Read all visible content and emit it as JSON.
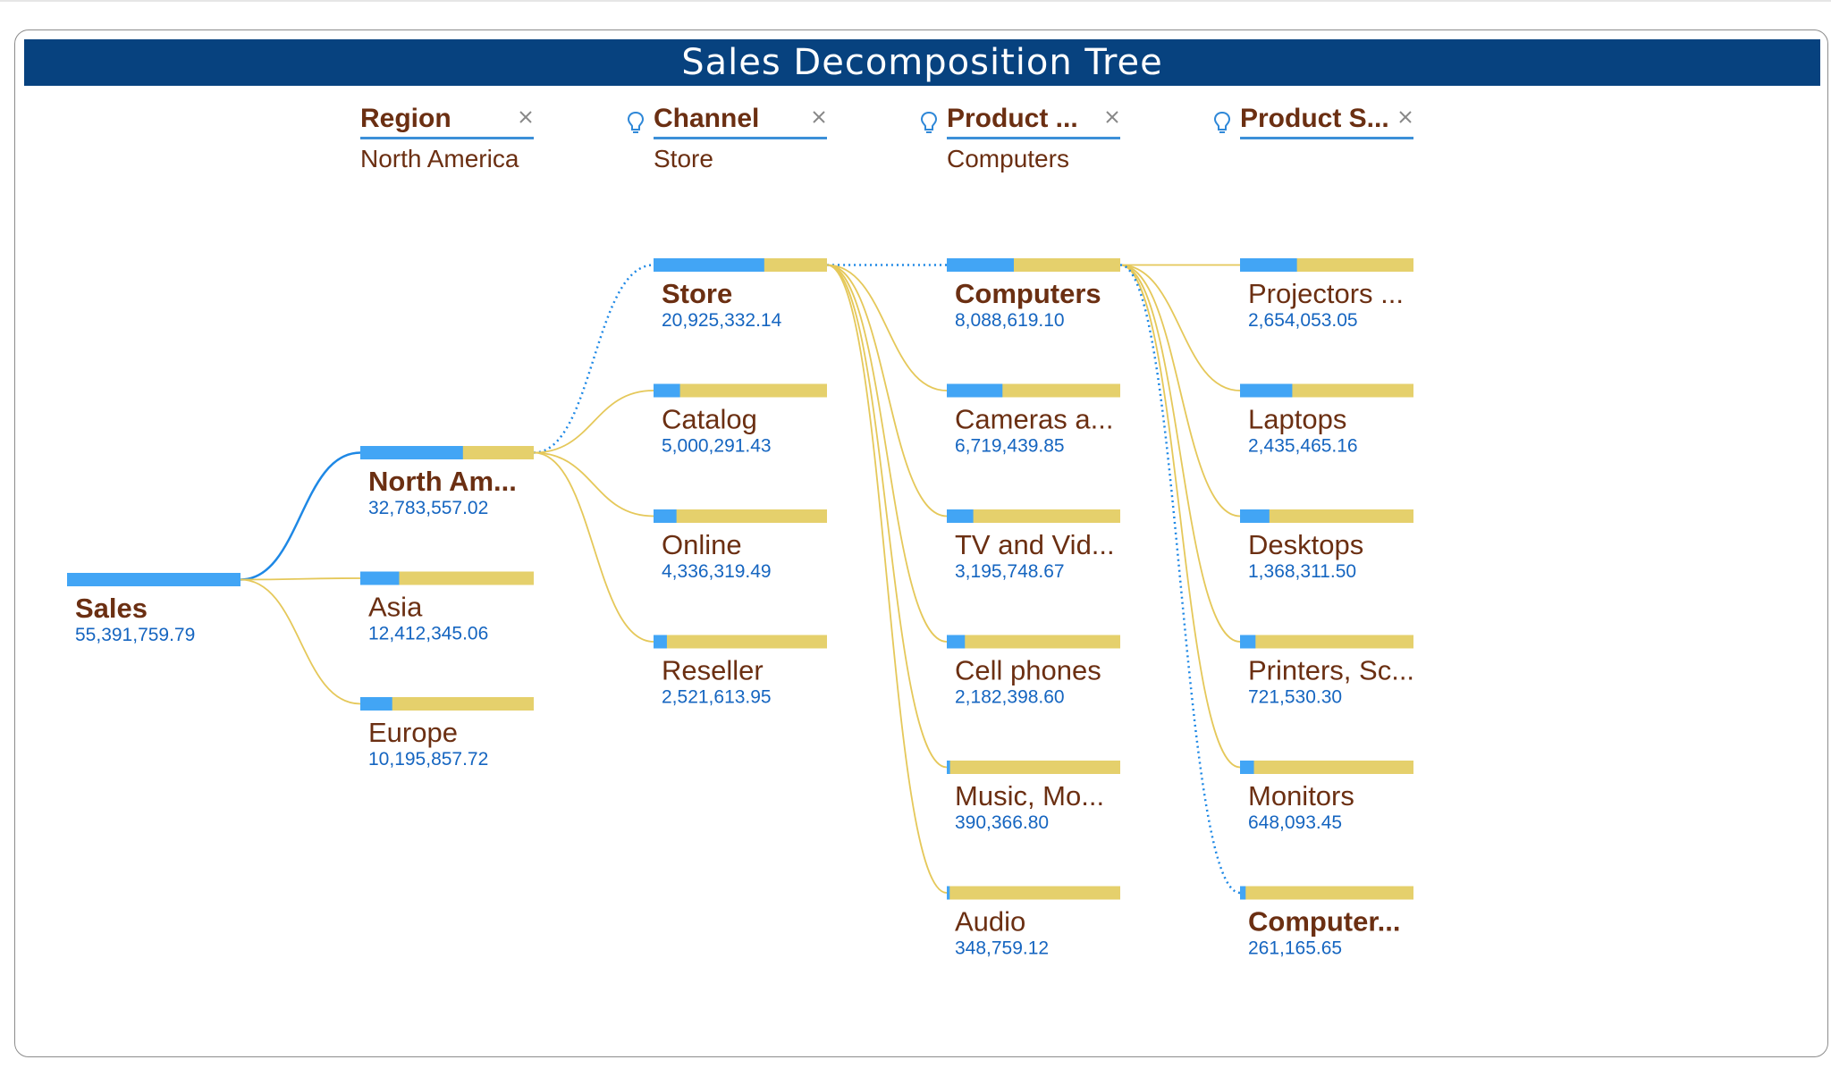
{
  "title": "Sales Decomposition Tree",
  "colors": {
    "title_bg": "#07427f",
    "bar_fill": "#42a5f5",
    "bar_rest": "#e5d06c",
    "active_link": "#1e88e5",
    "inactive_link": "#e5c85a",
    "label_text": "#6b2f12",
    "value_text": "#1565c0",
    "header_underline": "#3c8fd8"
  },
  "columns": [
    {
      "header": "Region",
      "selected": "North America",
      "ai_split": false,
      "removable": true
    },
    {
      "header": "Channel",
      "selected": "Store",
      "ai_split": true,
      "removable": true
    },
    {
      "header": "Product ...",
      "selected": "Computers",
      "ai_split": true,
      "removable": true
    },
    {
      "header": "Product S...",
      "selected": "",
      "ai_split": true,
      "removable": true
    }
  ],
  "chart_data": {
    "type": "decomposition-tree",
    "measure": "Sales",
    "root": {
      "label": "Sales",
      "value": 55391759.79,
      "display": "55,391,759.79"
    },
    "levels": [
      {
        "dimension": "Region",
        "selected_index": 0,
        "nodes": [
          {
            "label": "North Am...",
            "value": 32783557.02,
            "display": "32,783,557.02"
          },
          {
            "label": "Asia",
            "value": 12412345.06,
            "display": "12,412,345.06"
          },
          {
            "label": "Europe",
            "value": 10195857.72,
            "display": "10,195,857.72"
          }
        ]
      },
      {
        "dimension": "Channel",
        "selected_index": 0,
        "nodes": [
          {
            "label": "Store",
            "value": 20925332.14,
            "display": "20,925,332.14"
          },
          {
            "label": "Catalog",
            "value": 5000291.43,
            "display": "5,000,291.43"
          },
          {
            "label": "Online",
            "value": 4336319.49,
            "display": "4,336,319.49"
          },
          {
            "label": "Reseller",
            "value": 2521613.95,
            "display": "2,521,613.95"
          }
        ]
      },
      {
        "dimension": "Product ...",
        "selected_index": 0,
        "nodes": [
          {
            "label": "Computers",
            "value": 8088619.1,
            "display": "8,088,619.10"
          },
          {
            "label": "Cameras a...",
            "value": 6719439.85,
            "display": "6,719,439.85"
          },
          {
            "label": "TV and Vid...",
            "value": 3195748.67,
            "display": "3,195,748.67"
          },
          {
            "label": "Cell phones",
            "value": 2182398.6,
            "display": "2,182,398.60"
          },
          {
            "label": "Music, Mo...",
            "value": 390366.8,
            "display": "390,366.80"
          },
          {
            "label": "Audio",
            "value": 348759.12,
            "display": "348,759.12"
          }
        ]
      },
      {
        "dimension": "Product S...",
        "selected_index": 5,
        "nodes": [
          {
            "label": "Projectors ...",
            "value": 2654053.05,
            "display": "2,654,053.05"
          },
          {
            "label": "Laptops",
            "value": 2435465.16,
            "display": "2,435,465.16"
          },
          {
            "label": "Desktops",
            "value": 1368311.5,
            "display": "1,368,311.50"
          },
          {
            "label": "Printers, Sc...",
            "value": 721530.3,
            "display": "721,530.30"
          },
          {
            "label": "Monitors",
            "value": 648093.45,
            "display": "648,093.45"
          },
          {
            "label": "Computer...",
            "value": 261165.65,
            "display": "261,165.65"
          }
        ]
      }
    ]
  }
}
